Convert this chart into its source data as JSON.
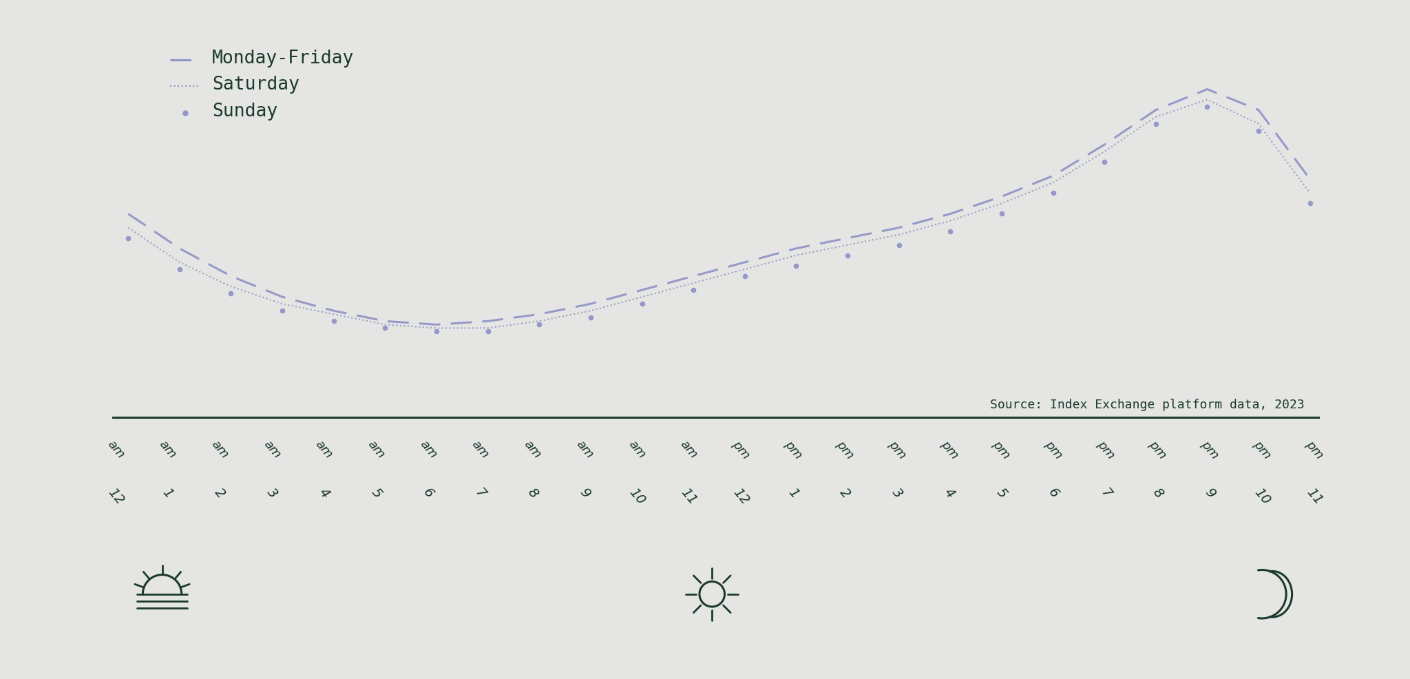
{
  "background_color": "#e5e5e3",
  "line_color": "#9196c8",
  "dark_green": "#1b3a2d",
  "source_text": "Source: Index Exchange platform data, 2023",
  "legend_labels": [
    "Monday-Friday",
    "Saturday",
    "Sunday"
  ],
  "hours": [
    "12 am",
    "1 am",
    "2 am",
    "3 am",
    "4 am",
    "5 am",
    "6 am",
    "7 am",
    "8 am",
    "9 am",
    "10 am",
    "11 am",
    "12 pm",
    "1 pm",
    "2 pm",
    "3 pm",
    "4 pm",
    "5 pm",
    "6 pm",
    "7 pm",
    "8 pm",
    "9 pm",
    "10 pm",
    "11 pm"
  ],
  "monday_friday": [
    62,
    52,
    44,
    38,
    34,
    31,
    30,
    31,
    33,
    36,
    40,
    44,
    48,
    52,
    55,
    58,
    62,
    67,
    73,
    82,
    92,
    98,
    92,
    72
  ],
  "saturday": [
    58,
    48,
    41,
    36,
    33,
    30,
    29,
    29,
    31,
    34,
    38,
    42,
    46,
    50,
    53,
    56,
    60,
    65,
    71,
    80,
    90,
    95,
    88,
    68
  ],
  "sunday": [
    55,
    46,
    39,
    34,
    31,
    29,
    28,
    28,
    30,
    32,
    36,
    40,
    44,
    47,
    50,
    53,
    57,
    62,
    68,
    77,
    88,
    93,
    86,
    65
  ]
}
